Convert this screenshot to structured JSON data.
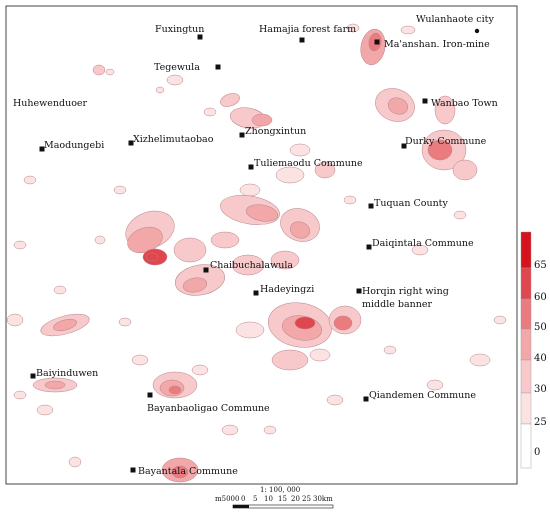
{
  "places": [
    {
      "name": "Fuxingtun",
      "marker": "square"
    },
    {
      "name": "Hamajia forest farm",
      "marker": "square"
    },
    {
      "name": "Wulanhaote city",
      "marker": "dot"
    },
    {
      "name": "Ma'anshan. Iron-mine",
      "marker": "square"
    },
    {
      "name": "Tegewula",
      "marker": "square"
    },
    {
      "name": "Huhewenduoer",
      "marker": "none"
    },
    {
      "name": "Wanbao Town",
      "marker": "square"
    },
    {
      "name": "Maodungebi",
      "marker": "square"
    },
    {
      "name": "Xizhelimutaobao",
      "marker": "square"
    },
    {
      "name": "Zhongxintun",
      "marker": "square"
    },
    {
      "name": "Durky Commune",
      "marker": "square"
    },
    {
      "name": "Tuliemaodu Commune",
      "marker": "square"
    },
    {
      "name": "Tuquan County",
      "marker": "square"
    },
    {
      "name": "Daiqintala Commune",
      "marker": "square"
    },
    {
      "name": "Chaibuchalawula",
      "marker": "square"
    },
    {
      "name": "Hadeyingzi",
      "marker": "square"
    },
    {
      "name": "Horqin right wing",
      "marker": "square"
    },
    {
      "name": "middle banner",
      "marker": "none"
    },
    {
      "name": "Baiyinduwen",
      "marker": "square"
    },
    {
      "name": "Bayanbaoligao Commune",
      "marker": "square"
    },
    {
      "name": "Qiandemen Commune",
      "marker": "square"
    },
    {
      "name": "Bayantala Commune",
      "marker": "square"
    }
  ],
  "legend": {
    "breaks": [
      "65",
      "60",
      "50",
      "40",
      "30",
      "25",
      "0"
    ],
    "colors": [
      "#d6121c",
      "#e0464d",
      "#ea7b7f",
      "#f2a7a9",
      "#f7c9ca",
      "#fbe3e3",
      "#ffffff"
    ]
  },
  "scale_bar": {
    "ratio": "1: 100, 000",
    "ticks": [
      "m5000",
      "0",
      "5",
      "10",
      "15",
      "20",
      "25",
      "30km"
    ]
  },
  "fill_classes": [
    "#fbe3e3",
    "#f7c9ca",
    "#f2a7a9",
    "#ea7b7f",
    "#e0464d"
  ],
  "outline_color": "#b8848a"
}
